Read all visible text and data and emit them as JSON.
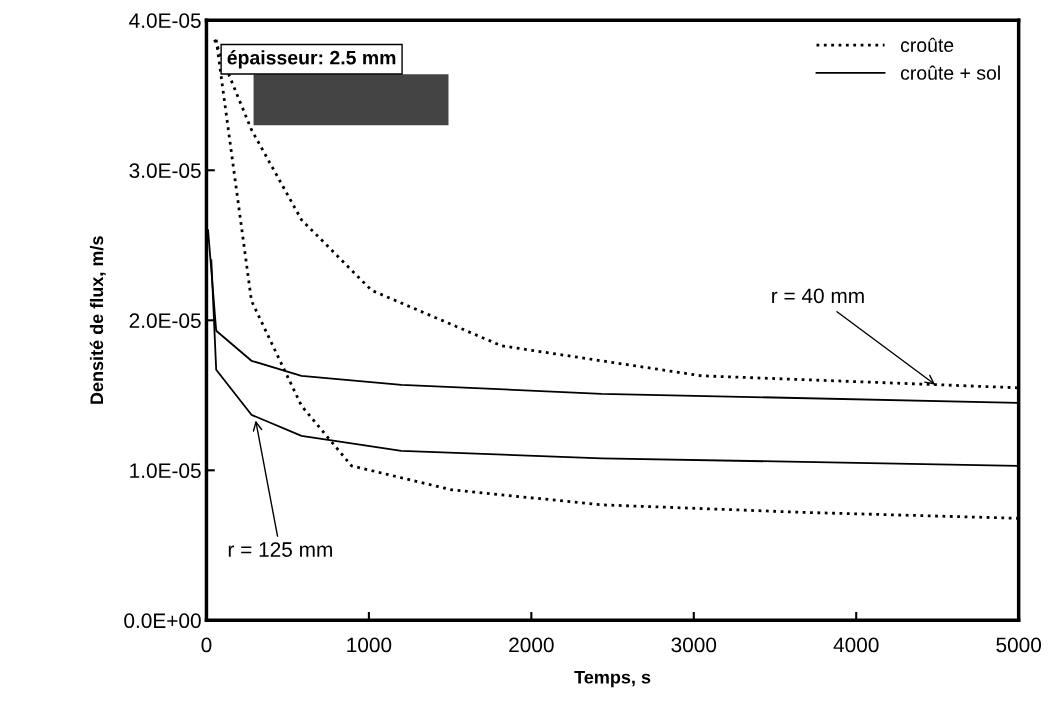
{
  "chart_data": {
    "type": "line",
    "xlabel": "Temps, s",
    "ylabel": "Densité de flux, m/s",
    "xlim": [
      0,
      5000
    ],
    "xticks": [
      0,
      1000,
      2000,
      3000,
      4000,
      5000
    ],
    "ylim": [
      0,
      4e-05
    ],
    "yticks": [
      {
        "value": 0,
        "label": "0.0E+00"
      },
      {
        "value": 1e-05,
        "label": "1.0E-05"
      },
      {
        "value": 2e-05,
        "label": "2.0E-05"
      },
      {
        "value": 3e-05,
        "label": "3.0E-05"
      },
      {
        "value": 4e-05,
        "label": "4.0E-05"
      }
    ],
    "grid": false,
    "legend": "top right",
    "marker": "none",
    "series": [
      {
        "name": "croûte",
        "color": "#000000",
        "line_style": "dotted",
        "x": [
          50,
          277,
          585,
          1016,
          1816,
          3048,
          5000
        ],
        "values": [
          3.87e-05,
          3.27e-05,
          2.67e-05,
          2.2e-05,
          1.83e-05,
          1.63e-05,
          1.55e-05
        ]
      },
      {
        "name": "croûte + sol",
        "color": "#000000",
        "line_style": "solid",
        "x": [
          10,
          60,
          277,
          585,
          1200,
          2432,
          5000
        ],
        "values": [
          2.6e-05,
          1.93e-05,
          1.73e-05,
          1.63e-05,
          1.57e-05,
          1.51e-05,
          1.45e-05
        ]
      },
      {
        "color": "#000000",
        "line_style": "dotted",
        "x": [
          60,
          277,
          585,
          893,
          1509,
          2432,
          3663,
          5000
        ],
        "values": [
          3.87e-05,
          2.13e-05,
          1.43e-05,
          1.03e-05,
          8.7e-06,
          7.7e-06,
          7.2e-06,
          6.8e-06
        ]
      },
      {
        "color": "#000000",
        "line_style": "solid",
        "x": [
          30,
          60,
          277,
          585,
          1200,
          2432,
          5000
        ],
        "values": [
          2.4e-05,
          1.67e-05,
          1.37e-05,
          1.23e-05,
          1.13e-05,
          1.08e-05,
          1.03e-05
        ]
      }
    ],
    "annotations": [
      "épaisseur: 2.5 mm",
      {
        "text": "r = 40 mm",
        "x": 4500,
        "y": 1.56e-05
      },
      {
        "text": "r = 125 mm",
        "x": 300,
        "y": 1.35e-05
      }
    ]
  }
}
